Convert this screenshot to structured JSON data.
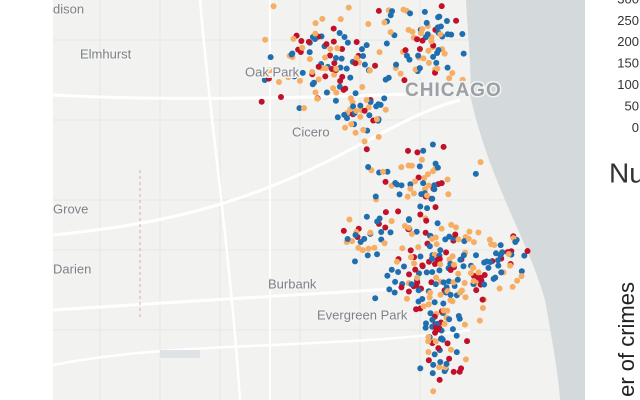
{
  "map": {
    "places": [
      "dison",
      "Elmhurst",
      "Oak Park",
      "CHICAGO",
      "Cicero",
      "Grove",
      "Darien",
      "Burbank",
      "Evergreen Park"
    ]
  },
  "colorbar": {
    "ticks": [
      300,
      250,
      200,
      150,
      100,
      50,
      0
    ]
  },
  "panel": {
    "title": "Nu",
    "axis_title": "er of crimes"
  }
}
